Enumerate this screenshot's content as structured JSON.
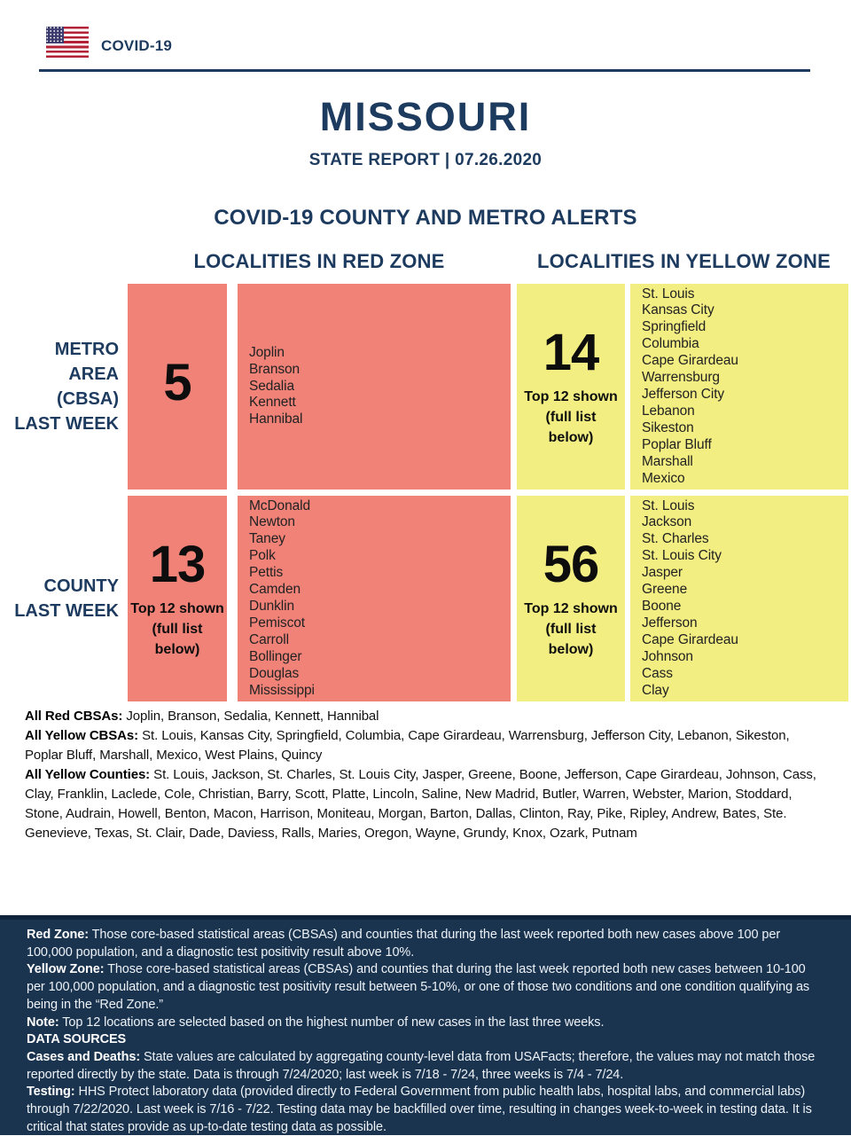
{
  "colors": {
    "red_zone": "#F08278",
    "yellow_zone": "#F2EE82",
    "navy": "#1D3A5F",
    "footer_bg": "#1A334F",
    "flag_red": "#B22234",
    "flag_blue": "#3C3B6E"
  },
  "header": {
    "brand": "COVID-19"
  },
  "title": {
    "state": "MISSOURI",
    "subtitle": "STATE REPORT | 07.26.2020"
  },
  "alerts": {
    "heading": "COVID-19 COUNTY AND METRO ALERTS",
    "red_zone_heading": "LOCALITIES IN RED ZONE",
    "yellow_zone_heading": "LOCALITIES IN YELLOW ZONE",
    "rows": [
      {
        "label_lines": [
          "METRO",
          "AREA",
          "(CBSA)",
          "LAST WEEK"
        ],
        "red": {
          "count": "5",
          "note_lines": [],
          "names": [
            "Joplin",
            "Branson",
            "Sedalia",
            "Kennett",
            "Hannibal"
          ]
        },
        "yellow": {
          "count": "14",
          "note_lines": [
            "Top 12 shown",
            "(full list",
            "below)"
          ],
          "names": [
            "St. Louis",
            "Kansas City",
            "Springfield",
            "Columbia",
            "Cape Girardeau",
            "Warrensburg",
            "Jefferson City",
            "Lebanon",
            "Sikeston",
            "Poplar Bluff",
            "Marshall",
            "Mexico"
          ]
        }
      },
      {
        "label_lines": [
          "COUNTY",
          "LAST WEEK"
        ],
        "red": {
          "count": "13",
          "note_lines": [
            "Top 12 shown",
            "(full list",
            "below)"
          ],
          "names": [
            "McDonald",
            "Newton",
            "Taney",
            "Polk",
            "Pettis",
            "Camden",
            "Dunklin",
            "Pemiscot",
            "Carroll",
            "Bollinger",
            "Douglas",
            "Mississippi"
          ]
        },
        "yellow": {
          "count": "56",
          "note_lines": [
            "Top 12 shown",
            "(full list",
            "below)"
          ],
          "names": [
            "St. Louis",
            "Jackson",
            "St. Charles",
            "St. Louis City",
            "Jasper",
            "Greene",
            "Boone",
            "Jefferson",
            "Cape Girardeau",
            "Johnson",
            "Cass",
            "Clay"
          ]
        }
      }
    ]
  },
  "summary": [
    {
      "label": "All Red CBSAs:",
      "text": " Joplin, Branson, Sedalia, Kennett, Hannibal"
    },
    {
      "label": "All Yellow CBSAs:",
      "text": " St. Louis, Kansas City, Springfield, Columbia, Cape Girardeau, Warrensburg, Jefferson City, Lebanon, Sikeston, Poplar Bluff, Marshall, Mexico, West Plains, Quincy"
    },
    {
      "label": "All Yellow Counties:",
      "text": " St. Louis, Jackson, St. Charles, St. Louis City, Jasper, Greene, Boone, Jefferson, Cape Girardeau, Johnson, Cass, Clay, Franklin, Laclede, Cole, Christian, Barry, Scott, Platte, Lincoln, Saline, New Madrid, Butler, Warren, Webster, Marion, Stoddard, Stone, Audrain, Howell, Benton, Macon, Harrison, Moniteau, Morgan, Barton, Dallas, Clinton, Ray, Pike, Ripley, Andrew, Bates, Ste. Genevieve, Texas, St. Clair, Dade, Daviess, Ralls, Maries, Oregon, Wayne, Grundy, Knox, Ozark, Putnam"
    }
  ],
  "footer": {
    "paragraphs": [
      {
        "label": "Red Zone:",
        "text": " Those core-based statistical areas (CBSAs) and counties that during the last week reported both new cases above 100 per 100,000 population, and a diagnostic test positivity result above 10%."
      },
      {
        "label": "Yellow Zone:",
        "text": " Those core-based statistical areas (CBSAs) and counties that during the last week reported both new cases between 10-100 per 100,000 population, and a diagnostic test positivity result between 5-10%, or one of those two conditions and one condition qualifying as being in the “Red Zone.”"
      },
      {
        "label": "Note:",
        "text": " Top 12 locations are selected based on the highest number of new cases in the last three weeks."
      },
      {
        "label": "DATA SOURCES",
        "text": ""
      },
      {
        "label": "Cases and Deaths:",
        "text": " State values are calculated by aggregating county-level data from USAFacts; therefore, the values may not match those reported directly by the state. Data is through 7/24/2020; last week is 7/18 - 7/24, three weeks is 7/4 - 7/24."
      },
      {
        "label": "Testing:",
        "text": " HHS Protect laboratory data (provided directly to Federal Government from public health labs, hospital labs, and commercial labs) through 7/22/2020. Last week is 7/16 - 7/22. Testing data may be backfilled over time, resulting in changes week-to-week in testing data. It is critical that states provide as up-to-date testing data as possible."
      }
    ]
  }
}
